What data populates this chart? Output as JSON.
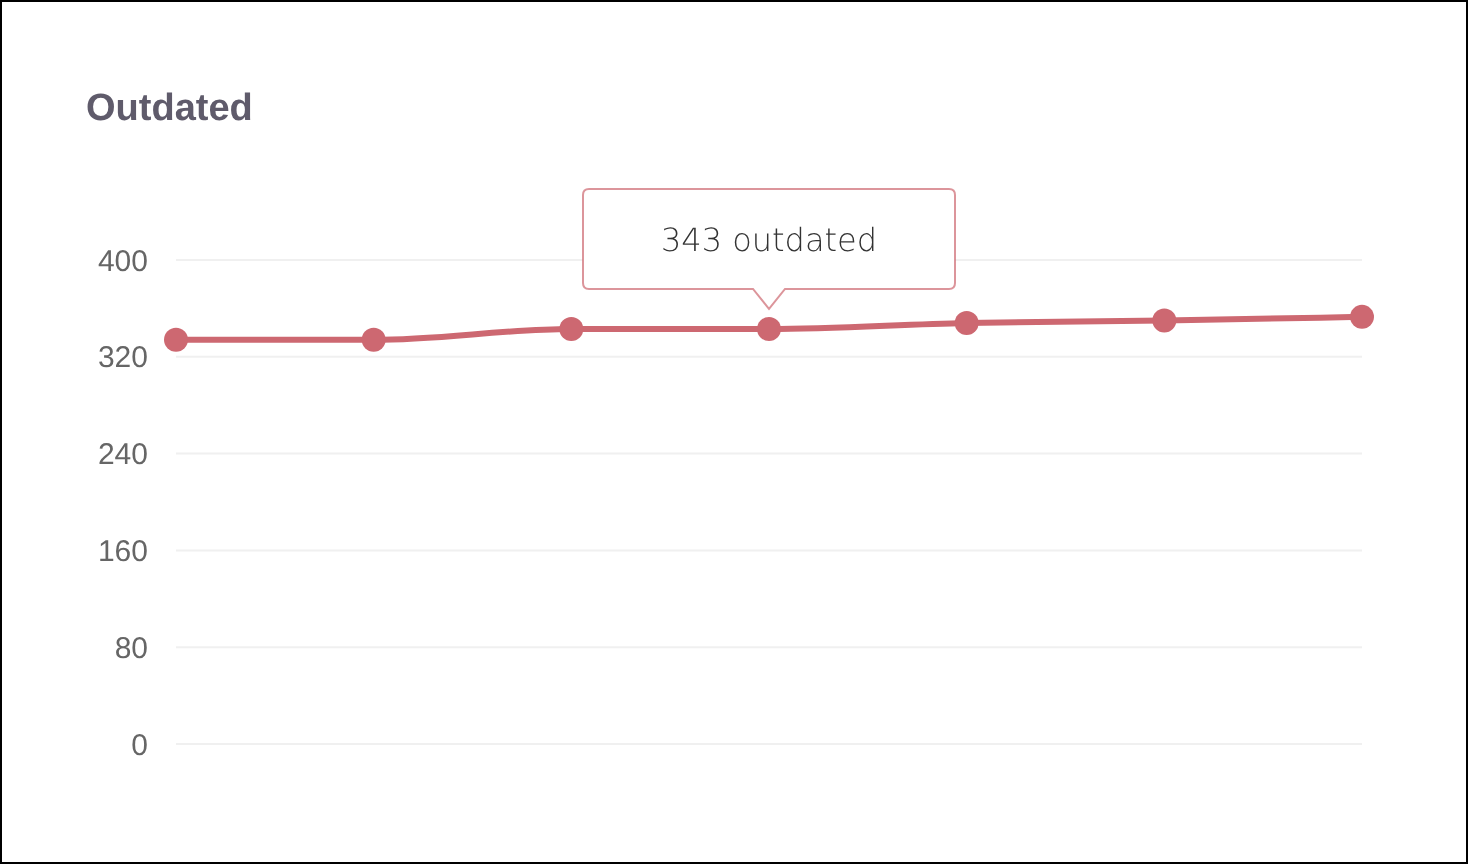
{
  "chart_data": {
    "type": "line",
    "title": "Outdated",
    "categories": [
      null,
      null,
      null,
      null,
      null,
      null,
      null
    ],
    "series": [
      {
        "color": "#cd6871",
        "values": [
          334,
          334,
          343,
          343,
          348,
          350,
          353
        ]
      }
    ],
    "ylim": [
      0,
      400
    ],
    "yticks": [
      0,
      80,
      160,
      240,
      320,
      400
    ],
    "grid": "y",
    "tick_labels": "y",
    "marker": "circle",
    "line_style": "solid",
    "annotations": [
      {
        "text": "343 outdated",
        "y": 343
      }
    ]
  }
}
